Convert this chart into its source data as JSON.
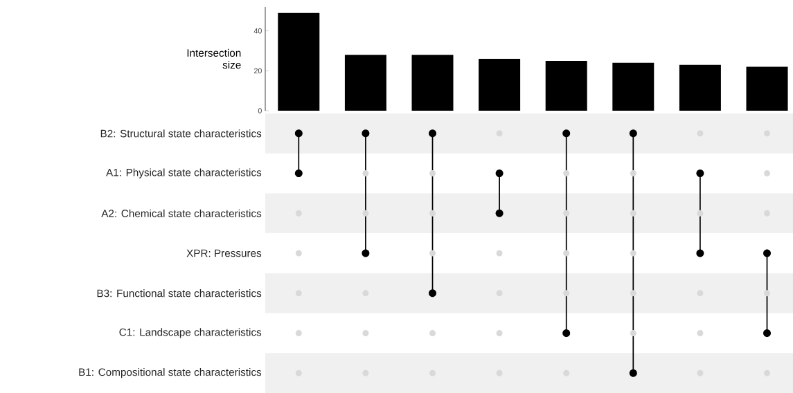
{
  "chart_data": [
    {
      "type": "bar",
      "ylabel": "Intersection size",
      "categories": [
        null,
        null,
        null,
        null,
        null,
        null,
        null,
        null
      ],
      "values": [
        49,
        28,
        28,
        26,
        25,
        24,
        23,
        22
      ],
      "color": "#000000",
      "ylim": [
        0,
        52
      ],
      "yticks": [
        0,
        20,
        40
      ]
    },
    {
      "type": "other",
      "annotations": [
        "B2: Structural state characteristics",
        "A1: Physical state characteristics",
        "A2: Chemical state characteristics",
        "XPR: Pressures",
        "B3: Functional state characteristics",
        "C1: Landscape characteristics",
        "B1: Compositional state characteristics"
      ],
      "colors": [
        "#000000",
        "#000000",
        "#000000",
        "#d9d9d9",
        "#000000",
        "#000000",
        "#d9d9d9",
        "#d9d9d9",
        "#000000",
        "#d9d9d9",
        "#d9d9d9",
        "#000000",
        "#d9d9d9",
        "#d9d9d9",
        "#000000",
        "#d9d9d9",
        "#d9d9d9",
        "#d9d9d9",
        "#d9d9d9",
        "#000000",
        "#d9d9d9",
        "#d9d9d9",
        "#d9d9d9",
        "#d9d9d9",
        "#d9d9d9",
        "#000000",
        "#d9d9d9",
        "#d9d9d9",
        "#d9d9d9",
        "#d9d9d9",
        "#000000",
        "#000000",
        "#d9d9d9",
        "#d9d9d9",
        "#000000",
        "#d9d9d9",
        "#d9d9d9",
        "#d9d9d9",
        "#d9d9d9",
        "#d9d9d9",
        "#d9d9d9",
        "#d9d9d9",
        "#d9d9d9",
        "#d9d9d9",
        "#000000",
        "#d9d9d9",
        "#d9d9d9",
        "#000000",
        "#d9d9d9",
        "#d9d9d9",
        "#d9d9d9",
        "#d9d9d9",
        "#d9d9d9",
        "#000000",
        "#d9d9d9",
        "#d9d9d9"
      ]
    }
  ]
}
